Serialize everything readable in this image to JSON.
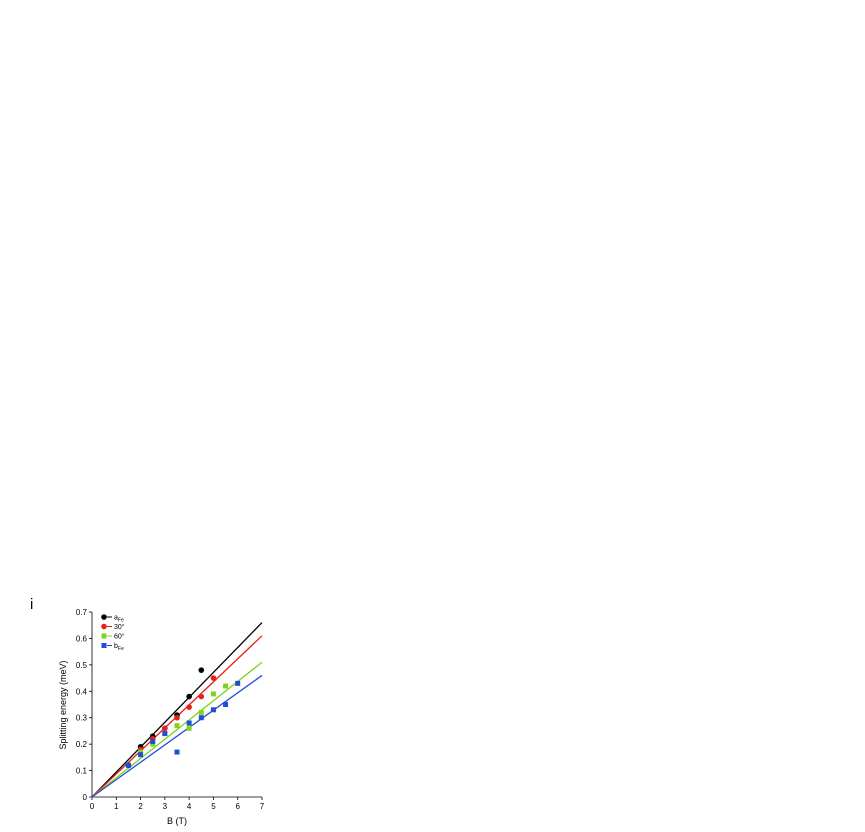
{
  "panel_label": "i",
  "chart_data": {
    "type": "scatter",
    "title": "",
    "xlabel": "B (T)",
    "ylabel": "Splitting energy (meV)",
    "xlim": [
      0,
      7
    ],
    "ylim": [
      0,
      0.7
    ],
    "xticks": [
      0,
      1,
      2,
      3,
      4,
      5,
      6,
      7
    ],
    "yticks": [
      0,
      0.1,
      0.2,
      0.3,
      0.4,
      0.5,
      0.6,
      0.7
    ],
    "ytick_labels": [
      "0",
      "0.1",
      "0.2",
      "0.3",
      "0.4",
      "0.5",
      "0.6",
      "0.7"
    ],
    "legend_position": "top-left",
    "series": [
      {
        "name": "a",
        "name_sub": "Fe",
        "color": "#000000",
        "marker": "circle",
        "x": [
          1.5,
          2.0,
          2.5,
          3.0,
          3.5,
          4.0,
          4.5
        ],
        "y": [
          0.12,
          0.19,
          0.23,
          0.26,
          0.31,
          0.38,
          0.48
        ],
        "fit": {
          "x": [
            0,
            7
          ],
          "y": [
            0,
            0.66
          ]
        }
      },
      {
        "name": "30°",
        "name_sub": "",
        "color": "#e8201a",
        "marker": "circle",
        "x": [
          2.0,
          2.5,
          3.0,
          3.5,
          4.0,
          4.5,
          5.0
        ],
        "y": [
          0.18,
          0.22,
          0.26,
          0.3,
          0.34,
          0.38,
          0.45
        ],
        "fit": {
          "x": [
            0,
            7
          ],
          "y": [
            0,
            0.61
          ]
        }
      },
      {
        "name": "60°",
        "name_sub": "",
        "color": "#7ed321",
        "marker": "square",
        "x": [
          2.0,
          2.5,
          3.0,
          3.5,
          4.0,
          4.5,
          5.0,
          5.5
        ],
        "y": [
          0.17,
          0.2,
          0.24,
          0.27,
          0.26,
          0.32,
          0.39,
          0.42
        ],
        "fit": {
          "x": [
            0,
            7
          ],
          "y": [
            0,
            0.51
          ]
        }
      },
      {
        "name": "b",
        "name_sub": "Fe",
        "color": "#1f4fd6",
        "marker": "square",
        "x": [
          1.5,
          2.0,
          2.5,
          3.0,
          3.5,
          4.0,
          4.5,
          5.0,
          5.5,
          6.0
        ],
        "y": [
          0.12,
          0.16,
          0.21,
          0.24,
          0.17,
          0.28,
          0.3,
          0.33,
          0.35,
          0.43
        ],
        "fit": {
          "x": [
            0,
            7
          ],
          "y": [
            0,
            0.46
          ]
        }
      }
    ]
  }
}
